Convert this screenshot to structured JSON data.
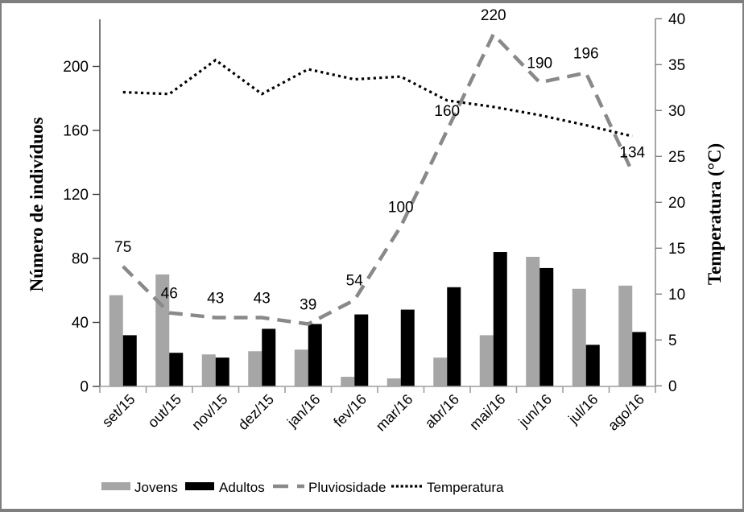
{
  "chart_data": {
    "type": "combo-bar-line",
    "categories": [
      "set/15",
      "out/15",
      "nov/15",
      "dez/15",
      "jan/16",
      "fev/16",
      "mar/16",
      "abr/16",
      "mai/16",
      "jun/16",
      "jul/16",
      "ago/16"
    ],
    "series": [
      {
        "name": "Jovens",
        "type": "bar",
        "axis": "left",
        "color": "#a6a6a6",
        "values": [
          57,
          70,
          20,
          22,
          23,
          6,
          5,
          18,
          32,
          81,
          61,
          63
        ]
      },
      {
        "name": "Adultos",
        "type": "bar",
        "axis": "left",
        "color": "#000000",
        "values": [
          32,
          21,
          18,
          36,
          39,
          45,
          48,
          62,
          84,
          74,
          26,
          34
        ]
      },
      {
        "name": "Pluviosidade",
        "type": "line",
        "line_style": "dashed",
        "axis": "left",
        "color": "#898989",
        "values": [
          75,
          46,
          43,
          43,
          39,
          54,
          100,
          160,
          220,
          190,
          196,
          134
        ],
        "show_data_labels": true
      },
      {
        "name": "Temperatura",
        "type": "line",
        "line_style": "dotted",
        "axis": "right",
        "color": "#000000",
        "values": [
          32.0,
          31.8,
          35.5,
          31.8,
          34.5,
          33.4,
          33.7,
          31.1,
          30.4,
          29.5,
          28.4,
          27.2
        ],
        "show_data_labels": false
      }
    ],
    "left_axis": {
      "title": "Número de indivíduos",
      "ticks": [
        0,
        40,
        80,
        120,
        160,
        200
      ],
      "range": [
        0,
        229
      ]
    },
    "right_axis": {
      "title": "Temperatura (°C)",
      "ticks": [
        0,
        5,
        10,
        15,
        20,
        25,
        30,
        35,
        40
      ],
      "range": [
        0,
        40
      ]
    },
    "legend": {
      "position": "bottom",
      "items": [
        "Jovens",
        "Adultos",
        "Pluviosidade",
        "Temperatura"
      ]
    },
    "grid": false,
    "title": ""
  },
  "colors": {
    "bar_jovens": "#a6a6a6",
    "bar_adultos": "#000000",
    "pluviosidade_line": "#898989",
    "temperatura_line": "#000000",
    "left_axis_line": "#404040",
    "right_axis_line": "#808080",
    "bottom_axis_line": "#9e9e9e",
    "text": "#000000",
    "frame_border": "#7f7f7f"
  }
}
